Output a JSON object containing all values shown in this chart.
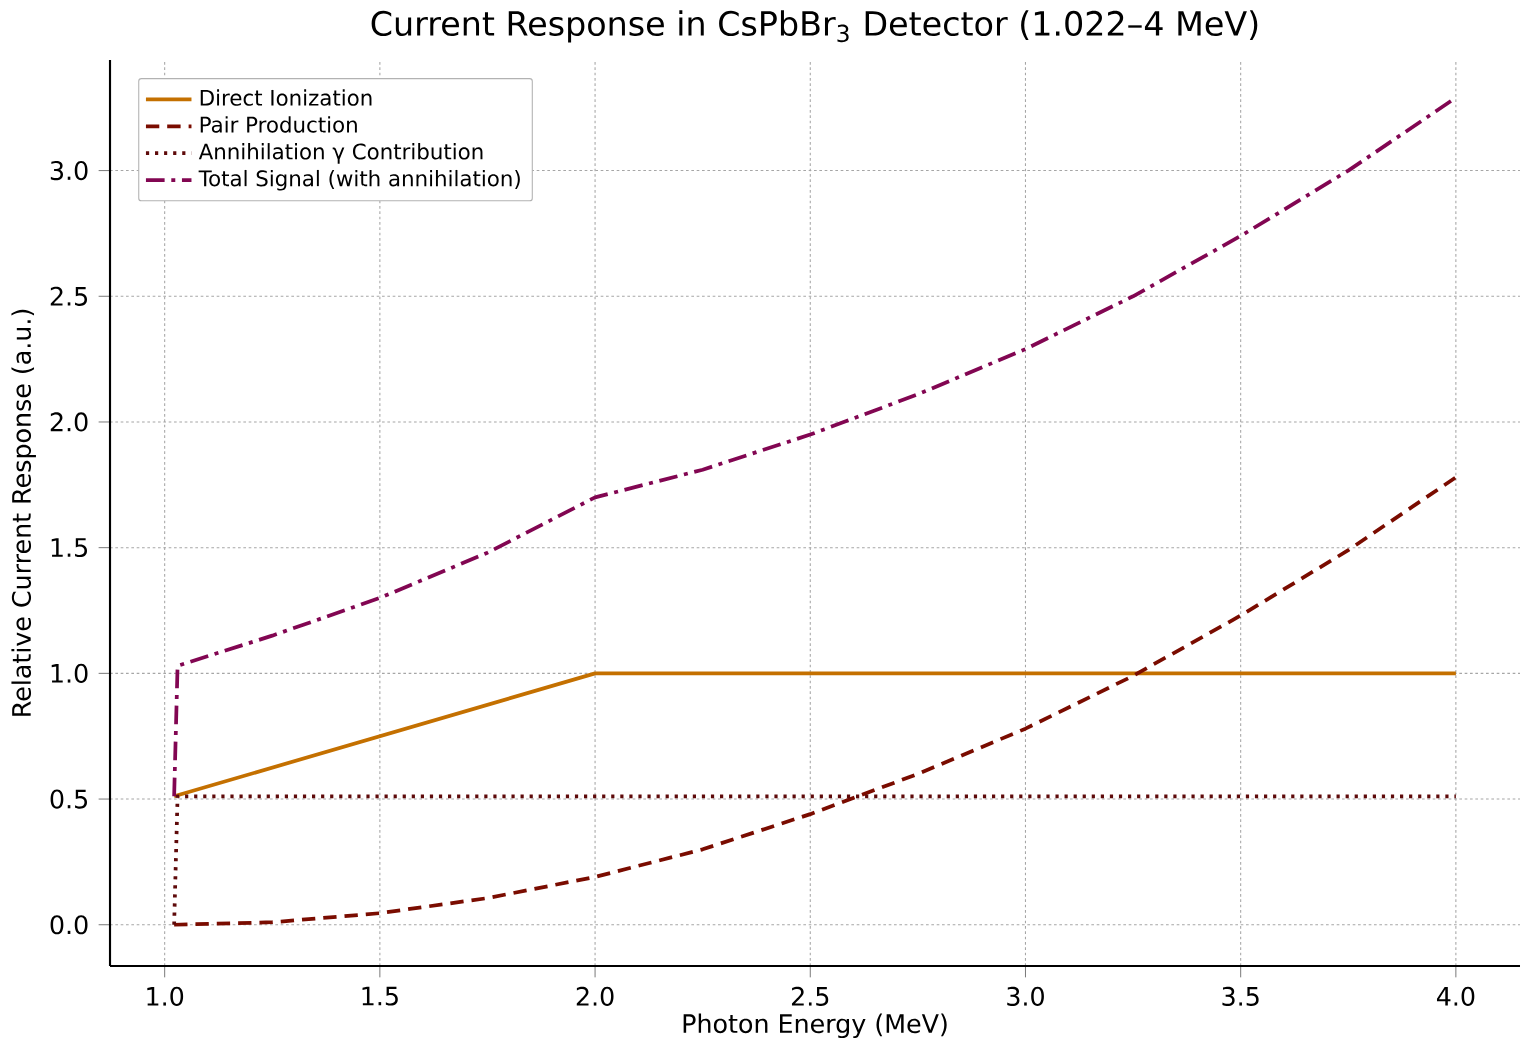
{
  "chart_data": {
    "type": "line",
    "title": "Current Response in CsPbBr$_{3}$ Detector (1.022–4 MeV)",
    "xlabel": "Photon Energy (MeV)",
    "ylabel": "Relative Current Response (a.u.)",
    "xlim": [
      0.873,
      4.149
    ],
    "ylim": [
      -0.164,
      3.44
    ],
    "xticks": [
      {
        "value": 1.0,
        "label": "1.0"
      },
      {
        "value": 1.5,
        "label": "1.5"
      },
      {
        "value": 2.0,
        "label": "2.0"
      },
      {
        "value": 2.5,
        "label": "2.5"
      },
      {
        "value": 3.0,
        "label": "3.0"
      },
      {
        "value": 3.5,
        "label": "3.5"
      },
      {
        "value": 4.0,
        "label": "4.0"
      }
    ],
    "yticks": [
      {
        "value": 0,
        "label": "0.0"
      },
      {
        "value": 0.5,
        "label": "0.5"
      },
      {
        "value": 1.0,
        "label": "1.0"
      },
      {
        "value": 1.5,
        "label": "1.5"
      },
      {
        "value": 2.0,
        "label": "2.0"
      },
      {
        "value": 2.5,
        "label": "2.5"
      },
      {
        "value": 3.0,
        "label": "3.0"
      }
    ],
    "grid": true,
    "legend": "top left",
    "series": [
      {
        "name": "Direct Ionization",
        "color": "#c47000",
        "line_style": "solid",
        "x": [
          1.022,
          2.0,
          4.0
        ],
        "values": [
          0.511,
          1.0,
          1.0
        ]
      },
      {
        "name": "Pair Production",
        "color": "#7a0c00",
        "line_style": "dashed",
        "x": [
          1.022,
          1.25,
          1.5,
          1.75,
          2.0,
          2.25,
          2.5,
          2.75,
          3.0,
          3.25,
          3.5,
          3.75,
          4.0
        ],
        "values": [
          0,
          0.01,
          0.046,
          0.106,
          0.19,
          0.3,
          0.44,
          0.6,
          0.78,
          0.99,
          1.23,
          1.49,
          1.78
        ]
      },
      {
        "name": "Annihilation γ Contribution",
        "color": "#5e0a0a",
        "line_style": "dotted",
        "x": [
          1.022,
          1.03,
          4.0
        ],
        "values": [
          0,
          0.511,
          0.511
        ]
      },
      {
        "name": "Total Signal (with annihilation)",
        "color": "#820652",
        "line_style": "dashdot",
        "x": [
          1.022,
          1.03,
          1.25,
          1.5,
          1.75,
          2.0,
          2.25,
          2.5,
          2.75,
          3.0,
          3.25,
          3.5,
          3.75,
          4.0
        ],
        "values": [
          0.511,
          1.03,
          1.15,
          1.3,
          1.48,
          1.7,
          1.81,
          1.95,
          2.11,
          2.29,
          2.5,
          2.74,
          3.0,
          3.29
        ]
      }
    ]
  }
}
